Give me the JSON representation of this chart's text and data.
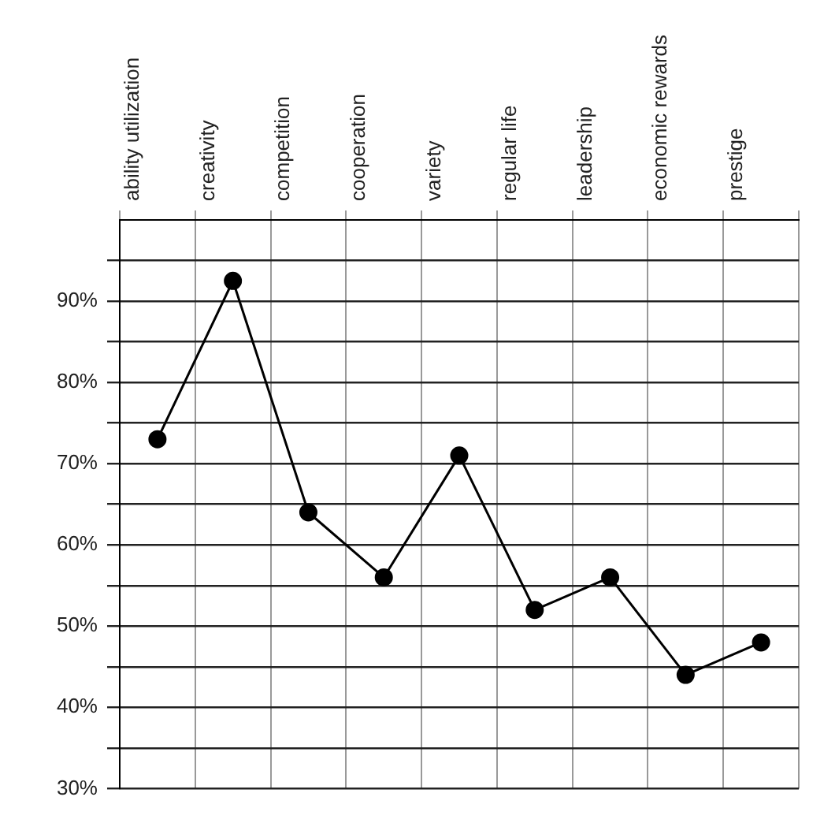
{
  "chart_data": {
    "type": "line",
    "categories": [
      "ability utilization",
      "creativity",
      "competition",
      "cooperation",
      "variety",
      "regular life",
      "leadership",
      "economic rewards",
      "prestige"
    ],
    "series": [
      {
        "color": "#000000",
        "values": [
          73,
          92.5,
          64,
          56,
          71,
          52,
          56,
          44,
          48
        ]
      }
    ],
    "ylim": [
      30,
      100
    ],
    "yticks": [
      {
        "value": 30,
        "label": "30%"
      },
      {
        "value": 35,
        "label": null
      },
      {
        "value": 40,
        "label": "40%"
      },
      {
        "value": 45,
        "label": null
      },
      {
        "value": 50,
        "label": "50%"
      },
      {
        "value": 55,
        "label": null
      },
      {
        "value": 60,
        "label": "60%"
      },
      {
        "value": 65,
        "label": null
      },
      {
        "value": 70,
        "label": "70%"
      },
      {
        "value": 75,
        "label": null
      },
      {
        "value": 80,
        "label": "80%"
      },
      {
        "value": 85,
        "label": null
      },
      {
        "value": 90,
        "label": "90%"
      },
      {
        "value": 95,
        "label": null
      }
    ],
    "grid": true,
    "legend": false,
    "marker": "circle",
    "line_style": "solid"
  }
}
